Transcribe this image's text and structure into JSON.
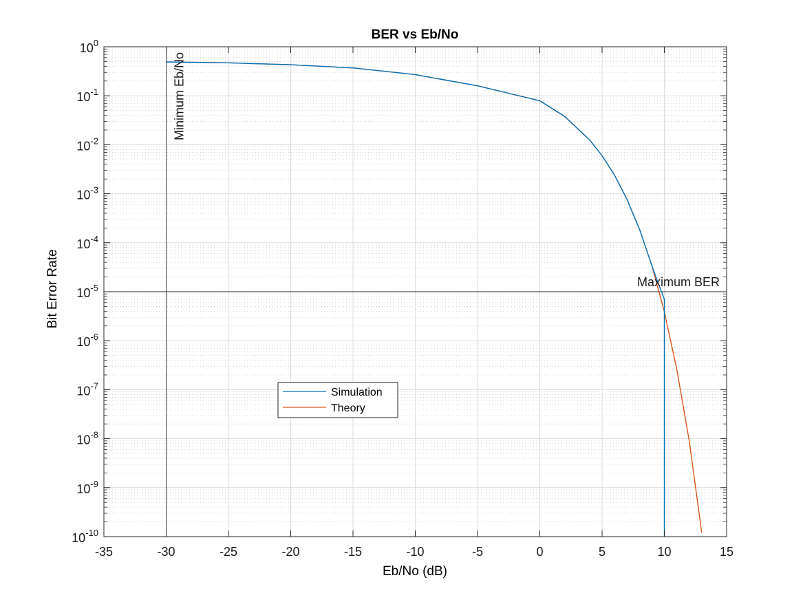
{
  "chart_data": {
    "type": "line",
    "title": "BER vs Eb/No",
    "xlabel": "Eb/No (dB)",
    "ylabel": "Bit Error Rate",
    "xlim": [
      -35,
      15
    ],
    "ylim": [
      1e-10,
      1
    ],
    "yscale": "log",
    "grid": true,
    "minor_grid": true,
    "xticks": [
      -35,
      -30,
      -25,
      -20,
      -15,
      -10,
      -5,
      0,
      5,
      10,
      15
    ],
    "xtick_labels": [
      "-35",
      "-30",
      "-25",
      "-20",
      "-15",
      "-10",
      "-5",
      "0",
      "5",
      "10",
      "15"
    ],
    "yticks": [
      {
        "value": 1,
        "base": "10",
        "exp": "0"
      },
      {
        "value": 0.1,
        "base": "10",
        "exp": "-1"
      },
      {
        "value": 0.01,
        "base": "10",
        "exp": "-2"
      },
      {
        "value": 0.001,
        "base": "10",
        "exp": "-3"
      },
      {
        "value": 0.0001,
        "base": "10",
        "exp": "-4"
      },
      {
        "value": 1e-05,
        "base": "10",
        "exp": "-5"
      },
      {
        "value": 1e-06,
        "base": "10",
        "exp": "-6"
      },
      {
        "value": 1e-07,
        "base": "10",
        "exp": "-7"
      },
      {
        "value": 1e-08,
        "base": "10",
        "exp": "-8"
      },
      {
        "value": 1e-09,
        "base": "10",
        "exp": "-9"
      },
      {
        "value": 1e-10,
        "base": "10",
        "exp": "-10"
      }
    ],
    "legend": {
      "placement": "lower-left-center",
      "entries": [
        "Simulation",
        "Theory"
      ]
    },
    "series": [
      {
        "name": "Simulation",
        "color": "#0072BD",
        "x": [
          -30,
          -25,
          -20,
          -15,
          -10,
          -5,
          0,
          2,
          4,
          5,
          6,
          7,
          8,
          9,
          9.5,
          10,
          10,
          10
        ],
        "y": [
          0.49,
          0.47,
          0.43,
          0.37,
          0.27,
          0.16,
          0.079,
          0.038,
          0.0125,
          0.006,
          0.0024,
          0.00077,
          0.00019,
          3.4e-05,
          1.5e-05,
          7e-06,
          4e-06,
          1e-10
        ]
      },
      {
        "name": "Theory",
        "color": "#D95319",
        "x": [
          -30,
          -25,
          -20,
          -15,
          -10,
          -5,
          0,
          2,
          4,
          5,
          6,
          7,
          8,
          9,
          10,
          11,
          12,
          13
        ],
        "y": [
          0.49,
          0.47,
          0.43,
          0.37,
          0.27,
          0.16,
          0.079,
          0.0375,
          0.0125,
          0.006,
          0.0024,
          0.00077,
          0.00019,
          3.4e-05,
          3.9e-06,
          2.6e-07,
          9e-09,
          1.2e-10
        ]
      }
    ],
    "reference_lines": [
      {
        "orientation": "vertical",
        "x": -30,
        "label": "Minimum Eb/No",
        "color": "#262626"
      },
      {
        "orientation": "horizontal",
        "y": 1e-05,
        "label": "Maximum BER",
        "color": "#262626"
      }
    ]
  }
}
